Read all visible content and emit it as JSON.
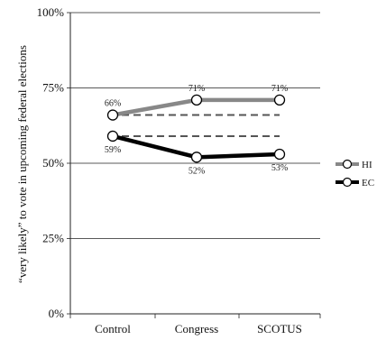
{
  "chart_data": {
    "type": "line",
    "title": "",
    "xlabel": "",
    "ylabel": "“very likely” to vote in upcoming federal elections",
    "categories": [
      "Control",
      "Congress",
      "SCOTUS"
    ],
    "ylim": [
      0,
      100
    ],
    "yticks": [
      0,
      25,
      50,
      75,
      100
    ],
    "ytick_labels": [
      "0%",
      "25%",
      "50%",
      "75%",
      "100%"
    ],
    "grid": "horizontal",
    "legend_position": "right",
    "series": [
      {
        "name": "HI",
        "values": [
          66,
          71,
          71
        ],
        "labels": [
          "66%",
          "71%",
          "71%"
        ],
        "color": "#888888",
        "label_side": "above"
      },
      {
        "name": "EC",
        "values": [
          59,
          52,
          53
        ],
        "labels": [
          "59%",
          "52%",
          "53%"
        ],
        "color": "#000000",
        "label_side": "below"
      }
    ],
    "reference_lines": [
      {
        "series": "HI",
        "value": 66
      },
      {
        "series": "EC",
        "value": 59
      }
    ]
  }
}
